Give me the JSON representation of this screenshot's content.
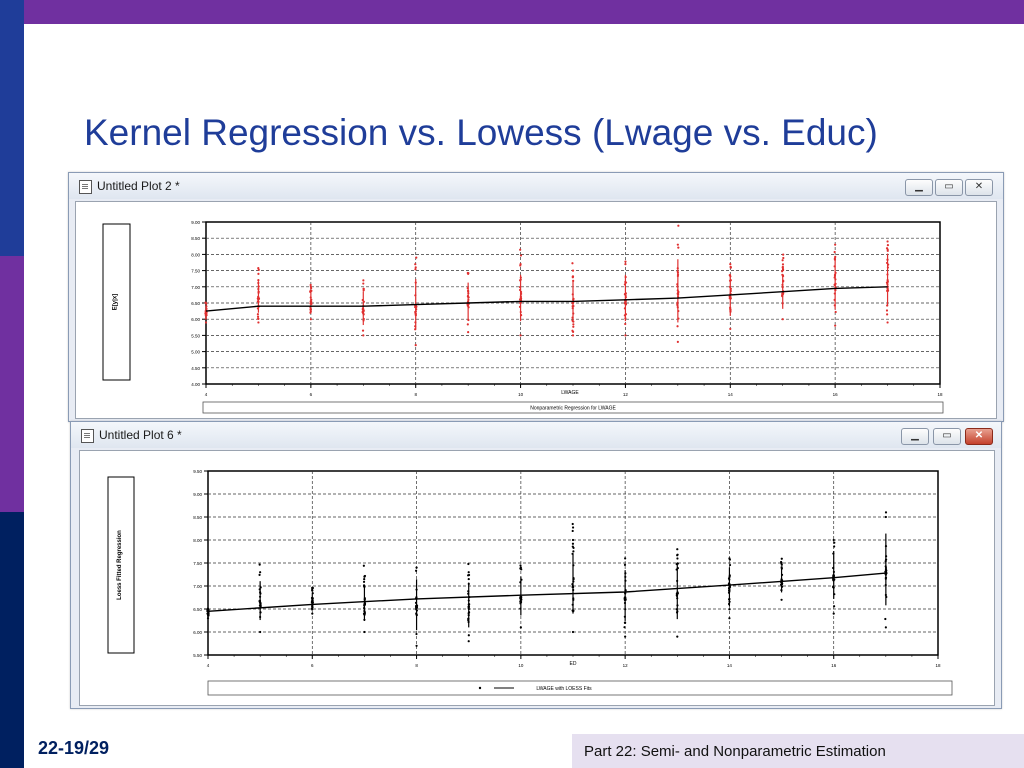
{
  "slide": {
    "title": "Kernel Regression vs. Lowess (Lwage vs. Educ)",
    "page_number": "22-19/29",
    "footer": "Part 22: Semi- and Nonparametric Estimation"
  },
  "colors": {
    "top_bar": "#7030a0",
    "left_bar": "#002060",
    "title": "#1f3d99",
    "kernel_points": "#e03030",
    "lowess_points": "#000000"
  },
  "windows": [
    {
      "title": "Untitled Plot 2 *",
      "controls": {
        "minimize": "minimize-icon",
        "maximize": "maximize-icon",
        "close": "close-icon"
      },
      "side_label": "E[y|x]",
      "legend": "Nonparametric Regression for  LWAGE",
      "chart_data": {
        "type": "scatter",
        "xlabel": "LWAGE",
        "x_ticks": [
          4,
          6,
          8,
          10,
          12,
          14,
          16,
          18
        ],
        "y_ticks": [
          "4.00",
          "4.50",
          "5.00",
          "5.50",
          "6.00",
          "6.50",
          "7.00",
          "7.50",
          "8.00",
          "8.50",
          "9.00"
        ],
        "xlim": [
          4,
          18
        ],
        "ylim": [
          4.0,
          9.0
        ],
        "grid": true,
        "fit_line": {
          "x": [
            4,
            5,
            6,
            7,
            8,
            9,
            10,
            11,
            12,
            13,
            14,
            15,
            16,
            17
          ],
          "y": [
            6.25,
            6.4,
            6.4,
            6.4,
            6.45,
            6.5,
            6.55,
            6.55,
            6.6,
            6.65,
            6.75,
            6.85,
            6.95,
            7.0
          ]
        },
        "point_columns": [
          {
            "x": 4,
            "ymin": 5.9,
            "ymax": 6.5
          },
          {
            "x": 5,
            "ymin": 5.9,
            "ymax": 7.4
          },
          {
            "x": 6,
            "ymin": 6.0,
            "ymax": 7.0
          },
          {
            "x": 7,
            "ymin": 5.5,
            "ymax": 7.1
          },
          {
            "x": 8,
            "ymin": 5.2,
            "ymax": 7.6
          },
          {
            "x": 9,
            "ymin": 5.6,
            "ymax": 7.4
          },
          {
            "x": 10,
            "ymin": 5.5,
            "ymax": 7.7
          },
          {
            "x": 11,
            "ymin": 5.5,
            "ymax": 7.5
          },
          {
            "x": 12,
            "ymin": 5.5,
            "ymax": 7.7
          },
          {
            "x": 13,
            "ymin": 5.3,
            "ymax": 8.3
          },
          {
            "x": 14,
            "ymin": 5.7,
            "ymax": 7.7
          },
          {
            "x": 15,
            "ymin": 6.0,
            "ymax": 7.6
          },
          {
            "x": 16,
            "ymin": 5.8,
            "ymax": 8.3
          },
          {
            "x": 17,
            "ymin": 5.9,
            "ymax": 8.4
          }
        ]
      }
    },
    {
      "title": "Untitled Plot 6 *",
      "controls": {
        "minimize": "minimize-icon",
        "maximize": "maximize-icon",
        "close": "close-icon"
      },
      "side_label": "Loess Fitted Regression",
      "legend": "LWAGE with LOESS Fits",
      "chart_data": {
        "type": "scatter",
        "xlabel": "ED",
        "x_ticks": [
          4,
          6,
          8,
          10,
          12,
          14,
          16,
          18
        ],
        "y_ticks": [
          "5.50",
          "6.00",
          "6.50",
          "7.00",
          "7.50",
          "8.00",
          "8.50",
          "9.00",
          "9.50"
        ],
        "xlim": [
          4,
          18
        ],
        "ylim": [
          5.5,
          9.5
        ],
        "grid": true,
        "fit_line": {
          "x": [
            4,
            6,
            8,
            10,
            12,
            14,
            16,
            17
          ],
          "y": [
            6.45,
            6.6,
            6.72,
            6.8,
            6.87,
            7.02,
            7.18,
            7.28
          ]
        },
        "point_columns": [
          {
            "x": 4,
            "ymin": 6.3,
            "ymax": 6.5
          },
          {
            "x": 5,
            "ymin": 6.0,
            "ymax": 7.3
          },
          {
            "x": 6,
            "ymin": 6.4,
            "ymax": 6.9
          },
          {
            "x": 7,
            "ymin": 6.0,
            "ymax": 7.2
          },
          {
            "x": 8,
            "ymin": 5.7,
            "ymax": 7.4
          },
          {
            "x": 9,
            "ymin": 5.8,
            "ymax": 7.3
          },
          {
            "x": 10,
            "ymin": 6.1,
            "ymax": 7.4
          },
          {
            "x": 11,
            "ymin": 6.0,
            "ymax": 8.0
          },
          {
            "x": 12,
            "ymin": 5.9,
            "ymax": 7.6
          },
          {
            "x": 13,
            "ymin": 5.9,
            "ymax": 7.8
          },
          {
            "x": 14,
            "ymin": 6.3,
            "ymax": 7.6
          },
          {
            "x": 15,
            "ymin": 6.7,
            "ymax": 7.5
          },
          {
            "x": 16,
            "ymin": 6.4,
            "ymax": 8.0
          },
          {
            "x": 17,
            "ymin": 6.1,
            "ymax": 8.5
          }
        ]
      }
    }
  ]
}
